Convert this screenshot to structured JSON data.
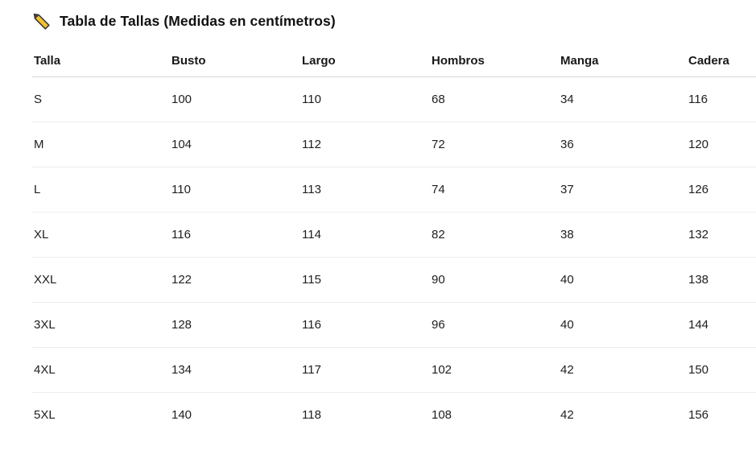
{
  "title": {
    "icon": "ruler-icon",
    "text": "Tabla de Tallas (Medidas en centímetros)"
  },
  "table": {
    "columns": [
      "Talla",
      "Busto",
      "Largo",
      "Hombros",
      "Manga",
      "Cadera"
    ],
    "rows": [
      [
        "S",
        "100",
        "110",
        "68",
        "34",
        "116"
      ],
      [
        "M",
        "104",
        "112",
        "72",
        "36",
        "120"
      ],
      [
        "L",
        "110",
        "113",
        "74",
        "37",
        "126"
      ],
      [
        "XL",
        "116",
        "114",
        "82",
        "38",
        "132"
      ],
      [
        "XXL",
        "122",
        "115",
        "90",
        "40",
        "138"
      ],
      [
        "3XL",
        "128",
        "116",
        "96",
        "40",
        "144"
      ],
      [
        "4XL",
        "134",
        "117",
        "102",
        "42",
        "150"
      ],
      [
        "5XL",
        "140",
        "118",
        "108",
        "42",
        "156"
      ]
    ]
  },
  "colors": {
    "text": "#1b1b1b",
    "header_border": "#d6d6d6",
    "row_border": "#ededed",
    "icon_fill": "#f5c12e",
    "icon_outline": "#3c3c3c",
    "background": "#ffffff"
  }
}
